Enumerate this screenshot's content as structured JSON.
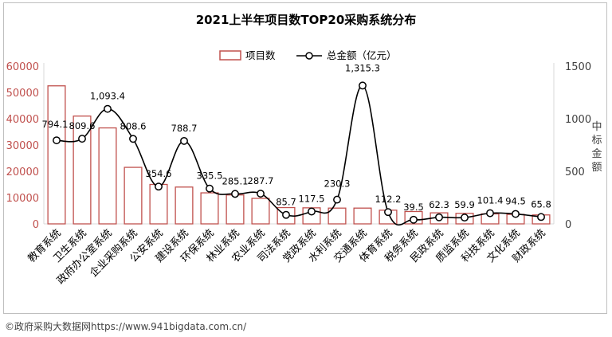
{
  "chart_data": {
    "type": "bar+line",
    "title": "2021上半年项目数TOP20采购系统分布",
    "categories": [
      "教育系统",
      "卫生系统",
      "政府办公室系统",
      "企业采购系统",
      "公安系统",
      "建设系统",
      "环保系统",
      "林业系统",
      "农业系统",
      "司法系统",
      "党政系统",
      "水利系统",
      "交通系统",
      "体育系统",
      "税务系统",
      "民政系统",
      "质监系统",
      "科技系统",
      "文化系统",
      "财政系统"
    ],
    "series": [
      {
        "name": "项目数",
        "kind": "bar",
        "axis": "left",
        "color": "#c0504d",
        "values": [
          52500,
          41000,
          36500,
          21500,
          15000,
          14000,
          11800,
          11000,
          9700,
          6200,
          6100,
          6000,
          6000,
          5200,
          4700,
          4200,
          4000,
          3800,
          3600,
          3400
        ]
      },
      {
        "name": "总金额（亿元）",
        "kind": "line",
        "axis": "right",
        "color": "#000000",
        "values": [
          794.1,
          809.6,
          1093.4,
          808.6,
          354.6,
          788.7,
          335.5,
          285.1,
          287.7,
          85.7,
          117.5,
          230.3,
          1315.3,
          112.2,
          39.5,
          62.3,
          59.9,
          101.4,
          94.5,
          65.8
        ],
        "labels": [
          "794.1",
          "809.6",
          "1,093.4",
          "808.6",
          "354.6",
          "788.7",
          "335.5",
          "285.1",
          "287.7",
          "85.7",
          "117.5",
          "230.3",
          "1,315.3",
          "112.2",
          "39.5",
          "62.3",
          "59.9",
          "101.4",
          "94.5",
          "65.8"
        ]
      }
    ],
    "left_axis": {
      "ylim": [
        0,
        60000
      ],
      "ticks": [
        "0",
        "10000",
        "20000",
        "30000",
        "40000",
        "50000",
        "60000"
      ],
      "color": "#c0504d"
    },
    "right_axis": {
      "ylim": [
        0,
        1500
      ],
      "ticks": [
        "0",
        "500",
        "1000",
        "1500"
      ],
      "label": "中标金额",
      "color": "#404040"
    },
    "legend_position": "top-center",
    "grid": false
  },
  "source_note": "©政府采购大数据网https://www.941bigdata.com.cn/"
}
